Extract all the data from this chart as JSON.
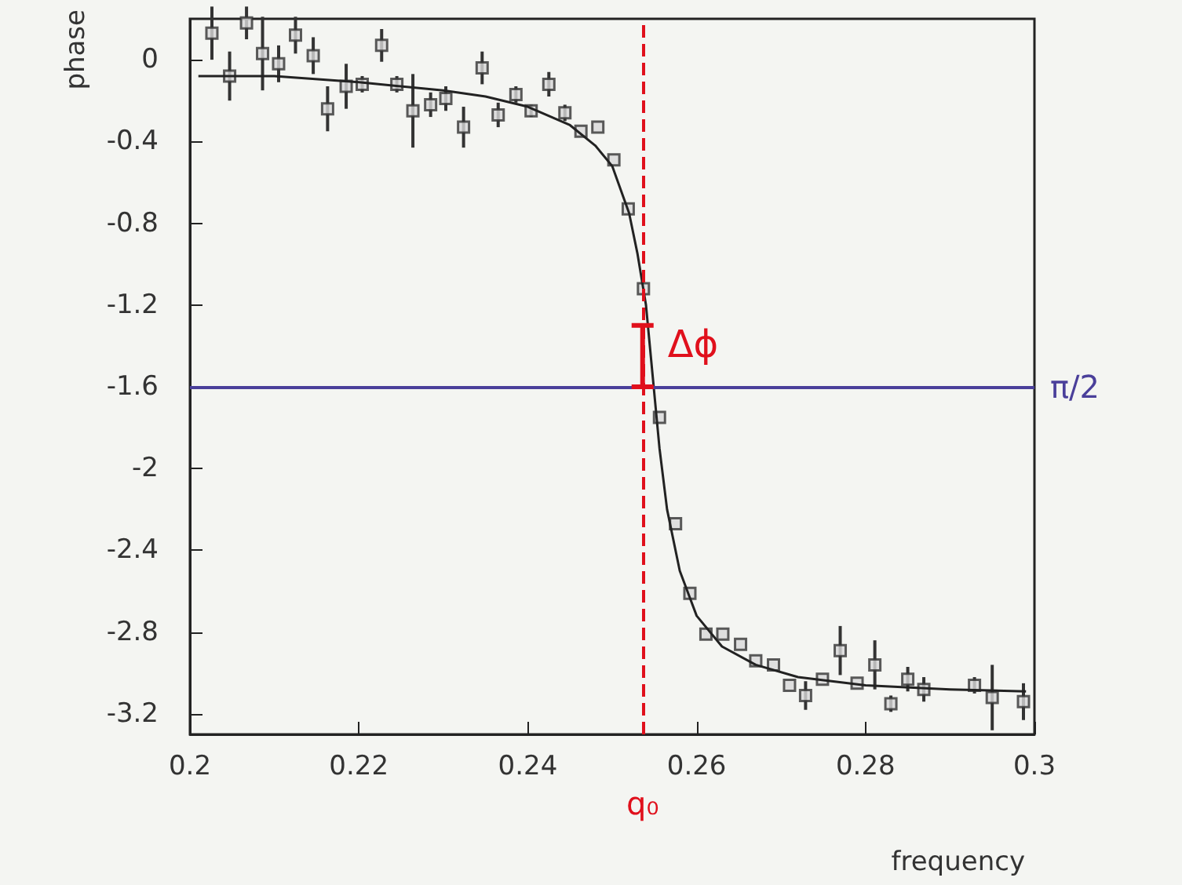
{
  "chart_data": {
    "type": "scatter",
    "xlabel": "frequency",
    "ylabel": "phase",
    "xlim": [
      0.2,
      0.3
    ],
    "xticks": [
      0.2,
      0.22,
      0.24,
      0.26,
      0.28,
      0.3
    ],
    "ylim": [
      -3.3,
      0.2
    ],
    "yticks": [
      0,
      -0.4,
      -0.8,
      -1.2,
      -1.6,
      -2,
      -2.4,
      -2.8,
      -3.2
    ],
    "grid": false,
    "series": [
      {
        "color": "#333333",
        "marker": "square",
        "x": [
          0.2026,
          0.2047,
          0.2067,
          0.2086,
          0.2105,
          0.2125,
          0.2146,
          0.2163,
          0.2185,
          0.2204,
          0.2227,
          0.2245,
          0.2264,
          0.2285,
          0.2303,
          0.2324,
          0.2346,
          0.2365,
          0.2386,
          0.2404,
          0.2425,
          0.2444,
          0.2463,
          0.2483,
          0.2502,
          0.2519,
          0.2537,
          0.2556,
          0.2575,
          0.2592,
          0.2611,
          0.2631,
          0.2652,
          0.267,
          0.2691,
          0.271,
          0.2729,
          0.2749,
          0.277,
          0.279,
          0.2811,
          0.283,
          0.285,
          0.2869,
          0.2929,
          0.295,
          0.2987
        ],
        "values": [
          0.13,
          -0.08,
          0.18,
          0.03,
          -0.02,
          0.12,
          0.02,
          -0.24,
          -0.13,
          -0.12,
          0.07,
          -0.12,
          -0.25,
          -0.22,
          -0.19,
          -0.33,
          -0.04,
          -0.27,
          -0.17,
          -0.25,
          -0.12,
          -0.26,
          -0.35,
          -0.33,
          -0.49,
          -0.73,
          -1.12,
          -1.75,
          -2.27,
          -2.61,
          -2.81,
          -2.81,
          -2.86,
          -2.94,
          -2.96,
          -3.06,
          -3.11,
          -3.03,
          -2.89,
          -3.05,
          -2.96,
          -3.15,
          -3.03,
          -3.08,
          -3.06,
          -3.12,
          -3.14
        ],
        "errors": [
          0.13,
          0.12,
          0.08,
          0.18,
          0.09,
          0.09,
          0.09,
          0.11,
          0.11,
          0.04,
          0.08,
          0.04,
          0.18,
          0.06,
          0.06,
          0.1,
          0.08,
          0.06,
          0.04,
          0.03,
          0.06,
          0.04,
          null,
          null,
          null,
          null,
          null,
          null,
          null,
          null,
          null,
          null,
          null,
          null,
          null,
          null,
          0.07,
          null,
          0.12,
          null,
          0.12,
          0.04,
          0.06,
          0.06,
          0.04,
          0.16,
          0.09
        ]
      },
      {
        "type": "line",
        "color": "#222222",
        "marker": "none",
        "line_style": "solid",
        "x": [
          0.201,
          0.21,
          0.22,
          0.23,
          0.235,
          0.24,
          0.245,
          0.248,
          0.25,
          0.252,
          0.253,
          0.254,
          0.2548,
          0.2556,
          0.2565,
          0.258,
          0.26,
          0.263,
          0.267,
          0.272,
          0.28,
          0.29,
          0.299
        ],
        "values": [
          -0.08,
          -0.08,
          -0.11,
          -0.15,
          -0.18,
          -0.23,
          -0.32,
          -0.42,
          -0.52,
          -0.75,
          -0.95,
          -1.2,
          -1.55,
          -1.9,
          -2.2,
          -2.5,
          -2.72,
          -2.87,
          -2.96,
          -3.02,
          -3.06,
          -3.08,
          -3.09
        ]
      }
    ],
    "ref_lines": [
      {
        "axis": "y",
        "value": -1.6,
        "label": "π/2",
        "color": "#4a3f9a",
        "line_style": "solid"
      },
      {
        "axis": "x",
        "value": 0.2536,
        "label": "q₀",
        "color": "#e0101c",
        "line_style": "dashed"
      }
    ],
    "annotations": [
      {
        "text": "Δϕ",
        "x": 0.2536,
        "y": -1.3
      }
    ]
  }
}
